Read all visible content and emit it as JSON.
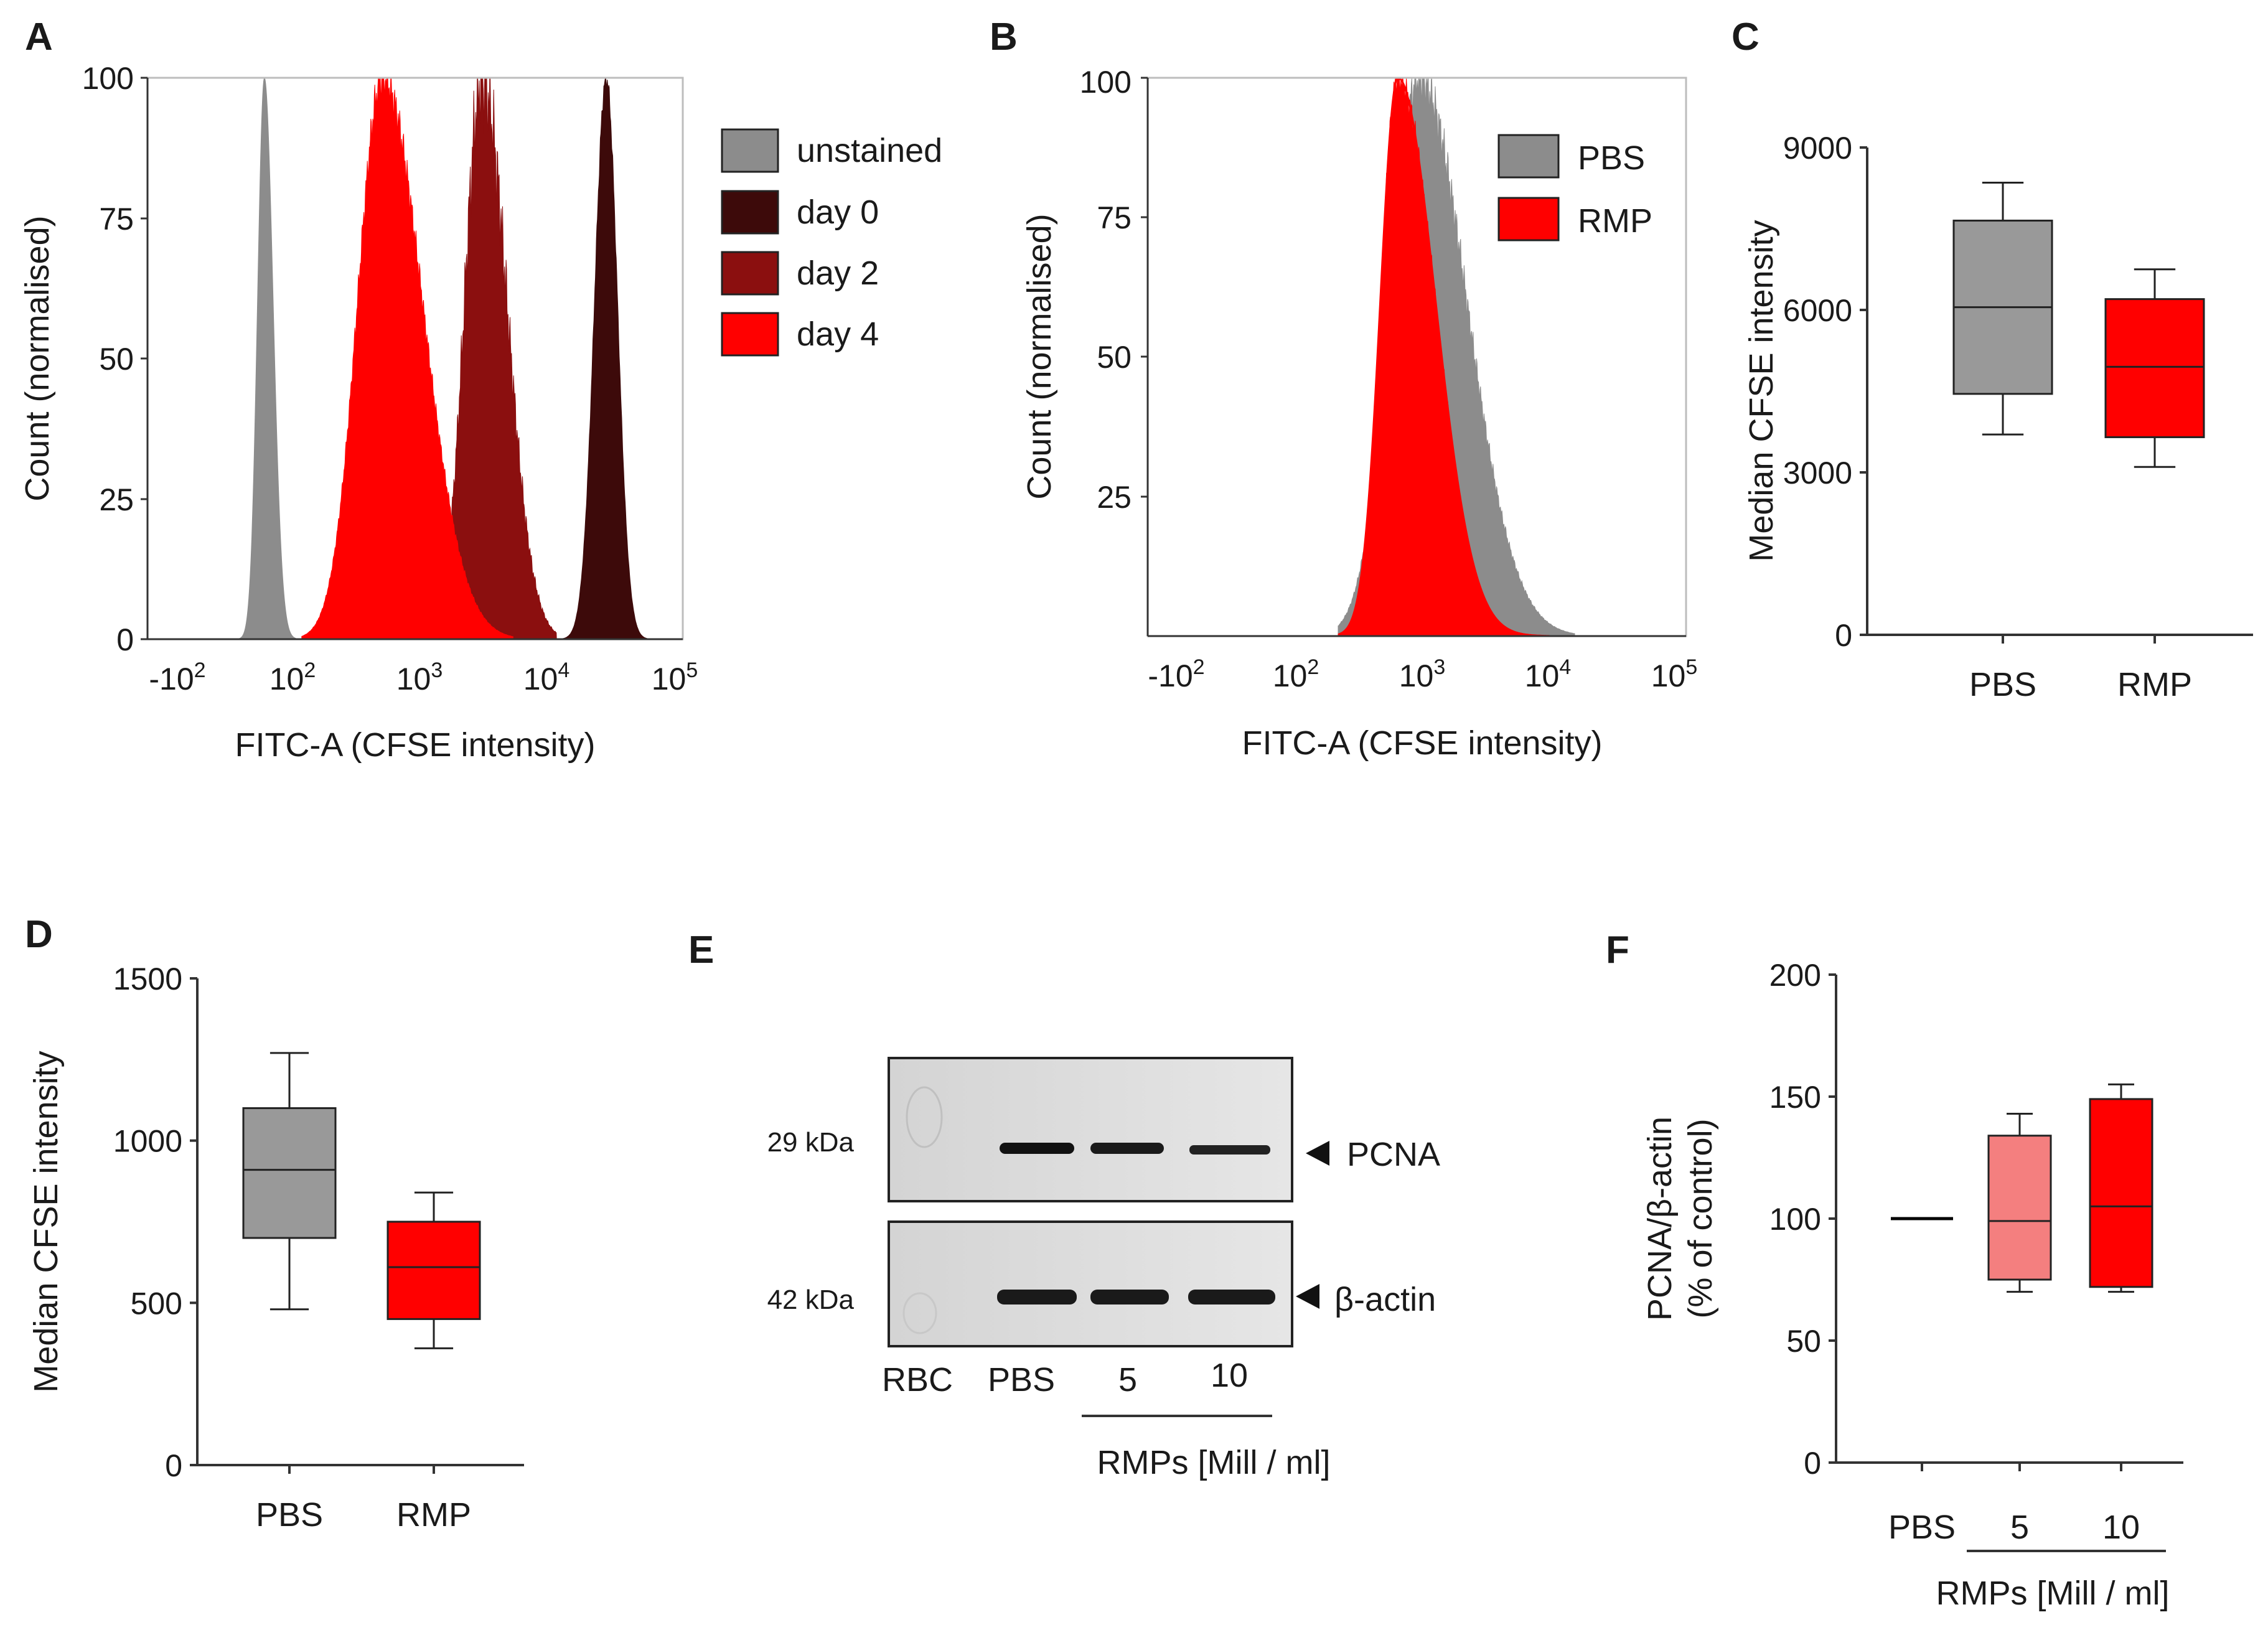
{
  "figure": {
    "panels": [
      {
        "id": "A",
        "label": "A"
      },
      {
        "id": "B",
        "label": "B"
      },
      {
        "id": "C",
        "label": "C"
      },
      {
        "id": "D",
        "label": "D"
      },
      {
        "id": "E",
        "label": "E"
      },
      {
        "id": "F",
        "label": "F"
      }
    ]
  },
  "chart_data": [
    {
      "id": "A",
      "type": "area",
      "title": "",
      "xlabel": "FITC-A (CFSE intensity)",
      "ylabel": "Count (normalised)",
      "ylim": [
        0,
        100
      ],
      "yticks": [
        "0",
        "25",
        "50",
        "75",
        "100"
      ],
      "xticks": [
        {
          "base": "-10",
          "exp": "2"
        },
        {
          "base": "10",
          "exp": "2"
        },
        {
          "base": "10",
          "exp": "3"
        },
        {
          "base": "10",
          "exp": "4"
        },
        {
          "base": "10",
          "exp": "5"
        }
      ],
      "legend": [
        "unstained",
        "day 0",
        "day 2",
        "day 4"
      ],
      "legend_position": "right",
      "series": [
        {
          "name": "unstained",
          "color": "#8c8c8c",
          "peak_log10": 1.7,
          "peak_count": 100
        },
        {
          "name": "day 0",
          "color": "#3d0a0a",
          "peak_log10": 4.45,
          "peak_count": 100
        },
        {
          "name": "day 2",
          "color": "#8b0f0f",
          "peak_log10": 3.45,
          "peak_count": 100
        },
        {
          "name": "day 4",
          "color": "#ff0000",
          "peak_log10": 2.65,
          "peak_count": 100
        }
      ]
    },
    {
      "id": "B",
      "type": "area",
      "title": "",
      "xlabel": "FITC-A (CFSE intensity)",
      "ylabel": "Count (normalised)",
      "ylim": [
        0,
        100
      ],
      "yticks": [
        "25",
        "50",
        "75",
        "100"
      ],
      "xticks": [
        {
          "base": "-10",
          "exp": "2"
        },
        {
          "base": "10",
          "exp": "2"
        },
        {
          "base": "10",
          "exp": "3"
        },
        {
          "base": "10",
          "exp": "4"
        },
        {
          "base": "10",
          "exp": "5"
        }
      ],
      "legend": [
        "PBS",
        "RMP"
      ],
      "legend_position": "top-right",
      "series": [
        {
          "name": "PBS",
          "color": "#8c8c8c",
          "peak_log10": 2.95,
          "peak_count": 100
        },
        {
          "name": "RMP",
          "color": "#ff0000",
          "peak_log10": 2.78,
          "peak_count": 100
        }
      ]
    },
    {
      "id": "C",
      "type": "box",
      "ylabel": "Median CFSE intensity",
      "ylim": [
        0,
        9000
      ],
      "yticks": [
        0,
        3000,
        6000,
        9000
      ],
      "categories": [
        "PBS",
        "RMP"
      ],
      "boxes": [
        {
          "name": "PBS",
          "min": 3700,
          "q1": 4450,
          "median": 6050,
          "q3": 7650,
          "max": 8350,
          "color": "#999999"
        },
        {
          "name": "RMP",
          "min": 3100,
          "q1": 3650,
          "median": 4950,
          "q3": 6200,
          "max": 6750,
          "color": "#ff0000"
        }
      ]
    },
    {
      "id": "D",
      "type": "box",
      "ylabel": "Median CFSE intensity",
      "ylim": [
        0,
        1500
      ],
      "yticks": [
        0,
        500,
        1000,
        1500
      ],
      "categories": [
        "PBS",
        "RMP"
      ],
      "boxes": [
        {
          "name": "PBS",
          "min": 480,
          "q1": 700,
          "median": 910,
          "q3": 1100,
          "max": 1270,
          "color": "#999999"
        },
        {
          "name": "RMP",
          "min": 360,
          "q1": 450,
          "median": 610,
          "q3": 750,
          "max": 840,
          "color": "#ff0000"
        }
      ]
    },
    {
      "id": "F",
      "type": "box",
      "ylabel_line1": "PCNA/β-actin",
      "ylabel_line2": "(% of control)",
      "ylim": [
        0,
        200
      ],
      "yticks": [
        0,
        50,
        100,
        150,
        200
      ],
      "categories": [
        "PBS",
        "5",
        "10"
      ],
      "group_label": "RMPs [Mill / ml]",
      "boxes": [
        {
          "name": "PBS",
          "min": 100,
          "q1": 100,
          "median": 100,
          "q3": 100,
          "max": 100,
          "color": "#000000"
        },
        {
          "name": "5",
          "min": 70,
          "q1": 75,
          "median": 99,
          "q3": 134,
          "max": 143,
          "color": "#f47f7f"
        },
        {
          "name": "10",
          "min": 70,
          "q1": 72,
          "median": 105,
          "q3": 149,
          "max": 155,
          "color": "#ff0000"
        }
      ]
    }
  ],
  "blot": {
    "bands": [
      {
        "name": "PCNA",
        "marker": "29 kDa"
      },
      {
        "name": "β-actin",
        "marker": "42 kDa"
      }
    ],
    "lanes": [
      "RBC",
      "PBS",
      "5",
      "10"
    ],
    "group_label": "RMPs [Mill / ml]"
  }
}
